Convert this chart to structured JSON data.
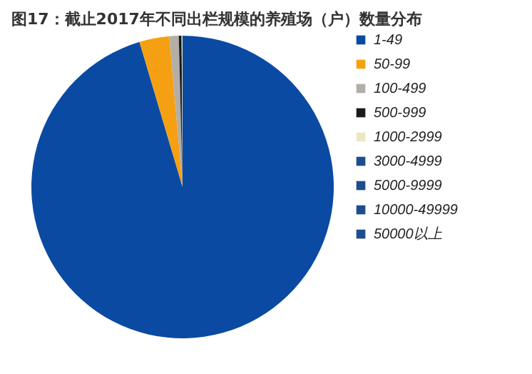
{
  "chart_data": {
    "type": "pie",
    "title": "图17：截止2017年不同出栏规模的养殖场（户）数量分布",
    "categories": [
      "1-49",
      "50-99",
      "100-499",
      "500-999",
      "1000-2999",
      "3000-4999",
      "5000-9999",
      "10000-49999",
      "50000以上"
    ],
    "values": [
      95.4,
      3.2,
      1.0,
      0.3,
      0.1,
      null,
      null,
      null,
      null
    ],
    "colors": [
      "#0b4aa2",
      "#f5a012",
      "#b3aea6",
      "#1a1a1a",
      "#ece7c4",
      "#1d4d8e",
      "#1d4d8e",
      "#1d4d8e",
      "#1d4d8e"
    ],
    "legend": "right"
  }
}
